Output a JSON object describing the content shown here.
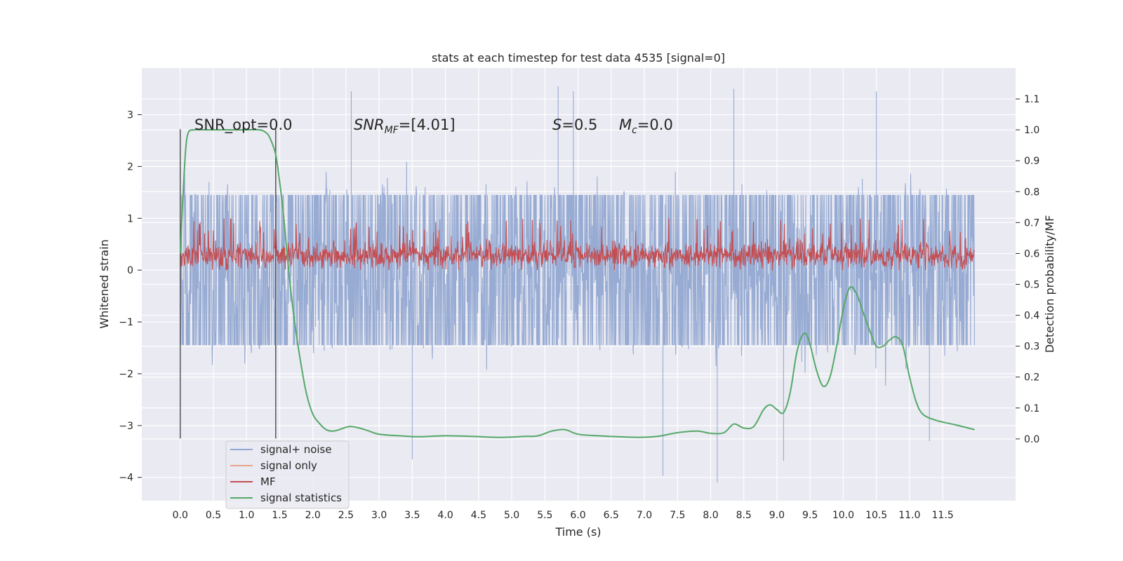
{
  "chart_data": {
    "type": "line",
    "title": "stats at each timestep for test data 4535 [signal=0]",
    "xlabel": "Time (s)",
    "ylabel": "Whitened strain",
    "y2label": "Detection probability/MF",
    "xlim": [
      -0.58,
      12.6
    ],
    "ylim": [
      -4.45,
      3.9
    ],
    "y2lim": [
      -0.2,
      1.2
    ],
    "x_ticks": [
      0.0,
      0.5,
      1.0,
      1.5,
      2.0,
      2.5,
      3.0,
      3.5,
      4.0,
      4.5,
      5.0,
      5.5,
      6.0,
      6.5,
      7.0,
      7.5,
      8.0,
      8.5,
      9.0,
      9.5,
      10.0,
      10.5,
      11.0,
      11.5
    ],
    "x_tick_labels": [
      "0.0",
      "0.5",
      "1.0",
      "1.5",
      "2.0",
      "2.5",
      "3.0",
      "3.5",
      "4.0",
      "4.5",
      "5.0",
      "5.5",
      "6.0",
      "6.5",
      "7.0",
      "7.5",
      "8.0",
      "8.5",
      "9.0",
      "9.5",
      "10.0",
      "10.5",
      "11.0",
      "11.5"
    ],
    "y_ticks": [
      3,
      2,
      1,
      0,
      -1,
      -2,
      -3,
      -4
    ],
    "y_tick_labels": [
      "3",
      "2",
      "1",
      "0",
      "−1",
      "−2",
      "−3",
      "−4"
    ],
    "y2_ticks": [
      1.1,
      1.0,
      0.9,
      0.8,
      0.7,
      0.6,
      0.5,
      0.4,
      0.3,
      0.2,
      0.1,
      0.0
    ],
    "y2_tick_labels": [
      "1.1",
      "1.0",
      "0.9",
      "0.8",
      "0.7",
      "0.6",
      "0.5",
      "0.4",
      "0.3",
      "0.2",
      "0.1",
      "0.0"
    ],
    "grid": true,
    "legend_position": "bottom-left",
    "annotations": {
      "snr_opt": "SNR_opt=0.0",
      "snr_mf_prefix": "SNR",
      "snr_mf_sub": "MF",
      "snr_mf_value": "=[4.01]",
      "s_prefix": "S",
      "s_value": "=0.5",
      "mc_prefix": "M",
      "mc_sub": "c",
      "mc_value": "=0.0"
    },
    "vertical_lines": [
      0.0,
      1.44
    ],
    "vertical_line_range": [
      -3.25,
      2.72
    ],
    "series": [
      {
        "name": "signal+ noise",
        "color": "#92a8d1",
        "axis": "left",
        "x_range": [
          0.0,
          11.98
        ],
        "typical_range": [
          -1.5,
          1.5
        ],
        "extremes": [
          -4.1,
          3.55
        ],
        "note_points": [
          [
            2.58,
            3.45
          ],
          [
            5.7,
            3.55
          ],
          [
            5.93,
            3.45
          ],
          [
            8.35,
            3.5
          ],
          [
            10.5,
            3.45
          ],
          [
            3.5,
            -3.65
          ],
          [
            7.28,
            -3.97
          ],
          [
            8.1,
            -4.1
          ],
          [
            9.1,
            -3.68
          ],
          [
            11.3,
            -3.3
          ]
        ]
      },
      {
        "name": "signal only",
        "color": "#e8a58a",
        "axis": "left",
        "values": []
      },
      {
        "name": "MF",
        "color": "#c44e52",
        "axis": "left",
        "x_range": [
          0.0,
          11.98
        ],
        "typical_range": [
          0.05,
          0.75
        ],
        "extremes": [
          0.0,
          1.05
        ]
      },
      {
        "name": "signal statistics",
        "color": "#55a868",
        "axis": "right",
        "x": [
          0.0,
          0.04,
          0.08,
          0.12,
          0.2,
          0.4,
          0.7,
          1.0,
          1.2,
          1.3,
          1.36,
          1.44,
          1.5,
          1.56,
          1.62,
          1.7,
          1.8,
          1.9,
          2.0,
          2.1,
          2.2,
          2.3,
          2.4,
          2.55,
          2.7,
          2.85,
          3.0,
          3.3,
          3.6,
          4.0,
          4.4,
          4.8,
          5.2,
          5.4,
          5.6,
          5.8,
          6.0,
          6.3,
          6.6,
          6.9,
          7.2,
          7.5,
          7.8,
          8.0,
          8.2,
          8.35,
          8.5,
          8.65,
          8.8,
          8.9,
          9.0,
          9.1,
          9.2,
          9.3,
          9.4,
          9.48,
          9.6,
          9.7,
          9.8,
          9.9,
          10.0,
          10.1,
          10.2,
          10.3,
          10.4,
          10.5,
          10.6,
          10.7,
          10.8,
          10.9,
          11.0,
          11.1,
          11.2,
          11.4,
          11.7,
          11.98
        ],
        "values": [
          0.6,
          0.78,
          0.93,
          0.99,
          1.0,
          1.0,
          1.0,
          1.0,
          1.0,
          0.99,
          0.97,
          0.92,
          0.83,
          0.72,
          0.58,
          0.42,
          0.27,
          0.15,
          0.08,
          0.05,
          0.03,
          0.025,
          0.03,
          0.04,
          0.035,
          0.025,
          0.015,
          0.01,
          0.007,
          0.01,
          0.008,
          0.005,
          0.008,
          0.01,
          0.025,
          0.03,
          0.015,
          0.01,
          0.007,
          0.005,
          0.008,
          0.02,
          0.025,
          0.018,
          0.02,
          0.048,
          0.035,
          0.04,
          0.095,
          0.11,
          0.095,
          0.085,
          0.15,
          0.28,
          0.34,
          0.32,
          0.22,
          0.17,
          0.2,
          0.3,
          0.42,
          0.49,
          0.47,
          0.41,
          0.35,
          0.3,
          0.3,
          0.32,
          0.33,
          0.3,
          0.2,
          0.12,
          0.08,
          0.06,
          0.045,
          0.03
        ]
      }
    ]
  }
}
